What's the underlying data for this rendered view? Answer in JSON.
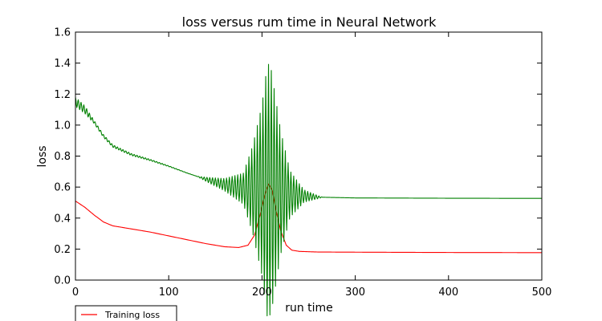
{
  "chart_data": {
    "type": "line",
    "title": "loss versus rum time in Neural Network",
    "xlabel": "run time",
    "ylabel": "loss",
    "xlim": [
      0,
      500
    ],
    "ylim": [
      0.0,
      1.6
    ],
    "xticks": [
      "0",
      "100",
      "200",
      "300",
      "400",
      "500"
    ],
    "yticks": [
      "0.0",
      "0.2",
      "0.4",
      "0.6",
      "0.8",
      "1.0",
      "1.2",
      "1.4",
      "1.6"
    ],
    "grid": false,
    "legend_position": "bottom-left",
    "series": [
      {
        "name": "Training loss",
        "color": "#ff0000",
        "x": [
          0,
          10,
          20,
          30,
          40,
          60,
          80,
          100,
          120,
          140,
          160,
          175,
          185,
          192,
          198,
          203,
          207,
          211,
          215,
          220,
          226,
          232,
          240,
          260,
          300,
          400,
          500
        ],
        "y": [
          0.51,
          0.47,
          0.42,
          0.375,
          0.35,
          0.33,
          0.31,
          0.285,
          0.26,
          0.235,
          0.215,
          0.21,
          0.225,
          0.29,
          0.42,
          0.55,
          0.62,
          0.58,
          0.45,
          0.32,
          0.225,
          0.193,
          0.185,
          0.181,
          0.18,
          0.178,
          0.177
        ]
      },
      {
        "name": "",
        "color": "#008000",
        "x": [
          0,
          10,
          20,
          30,
          40,
          60,
          80,
          100,
          120,
          140,
          160,
          180,
          200,
          220,
          240,
          260,
          300,
          400,
          500
        ],
        "y": [
          1.15,
          1.1,
          1.02,
          0.93,
          0.865,
          0.81,
          0.775,
          0.735,
          0.69,
          0.65,
          0.615,
          0.59,
          0.58,
          0.565,
          0.545,
          0.535,
          0.53,
          0.528,
          0.527
        ],
        "oscillation": {
          "x": [
            0,
            10,
            20,
            130,
            160,
            180,
            190,
            200,
            206,
            210,
            220,
            230,
            245,
            265
          ],
          "amplitude": [
            0.03,
            0.025,
            0.01,
            0.0,
            0.04,
            0.1,
            0.28,
            0.55,
            0.83,
            0.78,
            0.4,
            0.15,
            0.04,
            0.0
          ]
        }
      }
    ]
  }
}
